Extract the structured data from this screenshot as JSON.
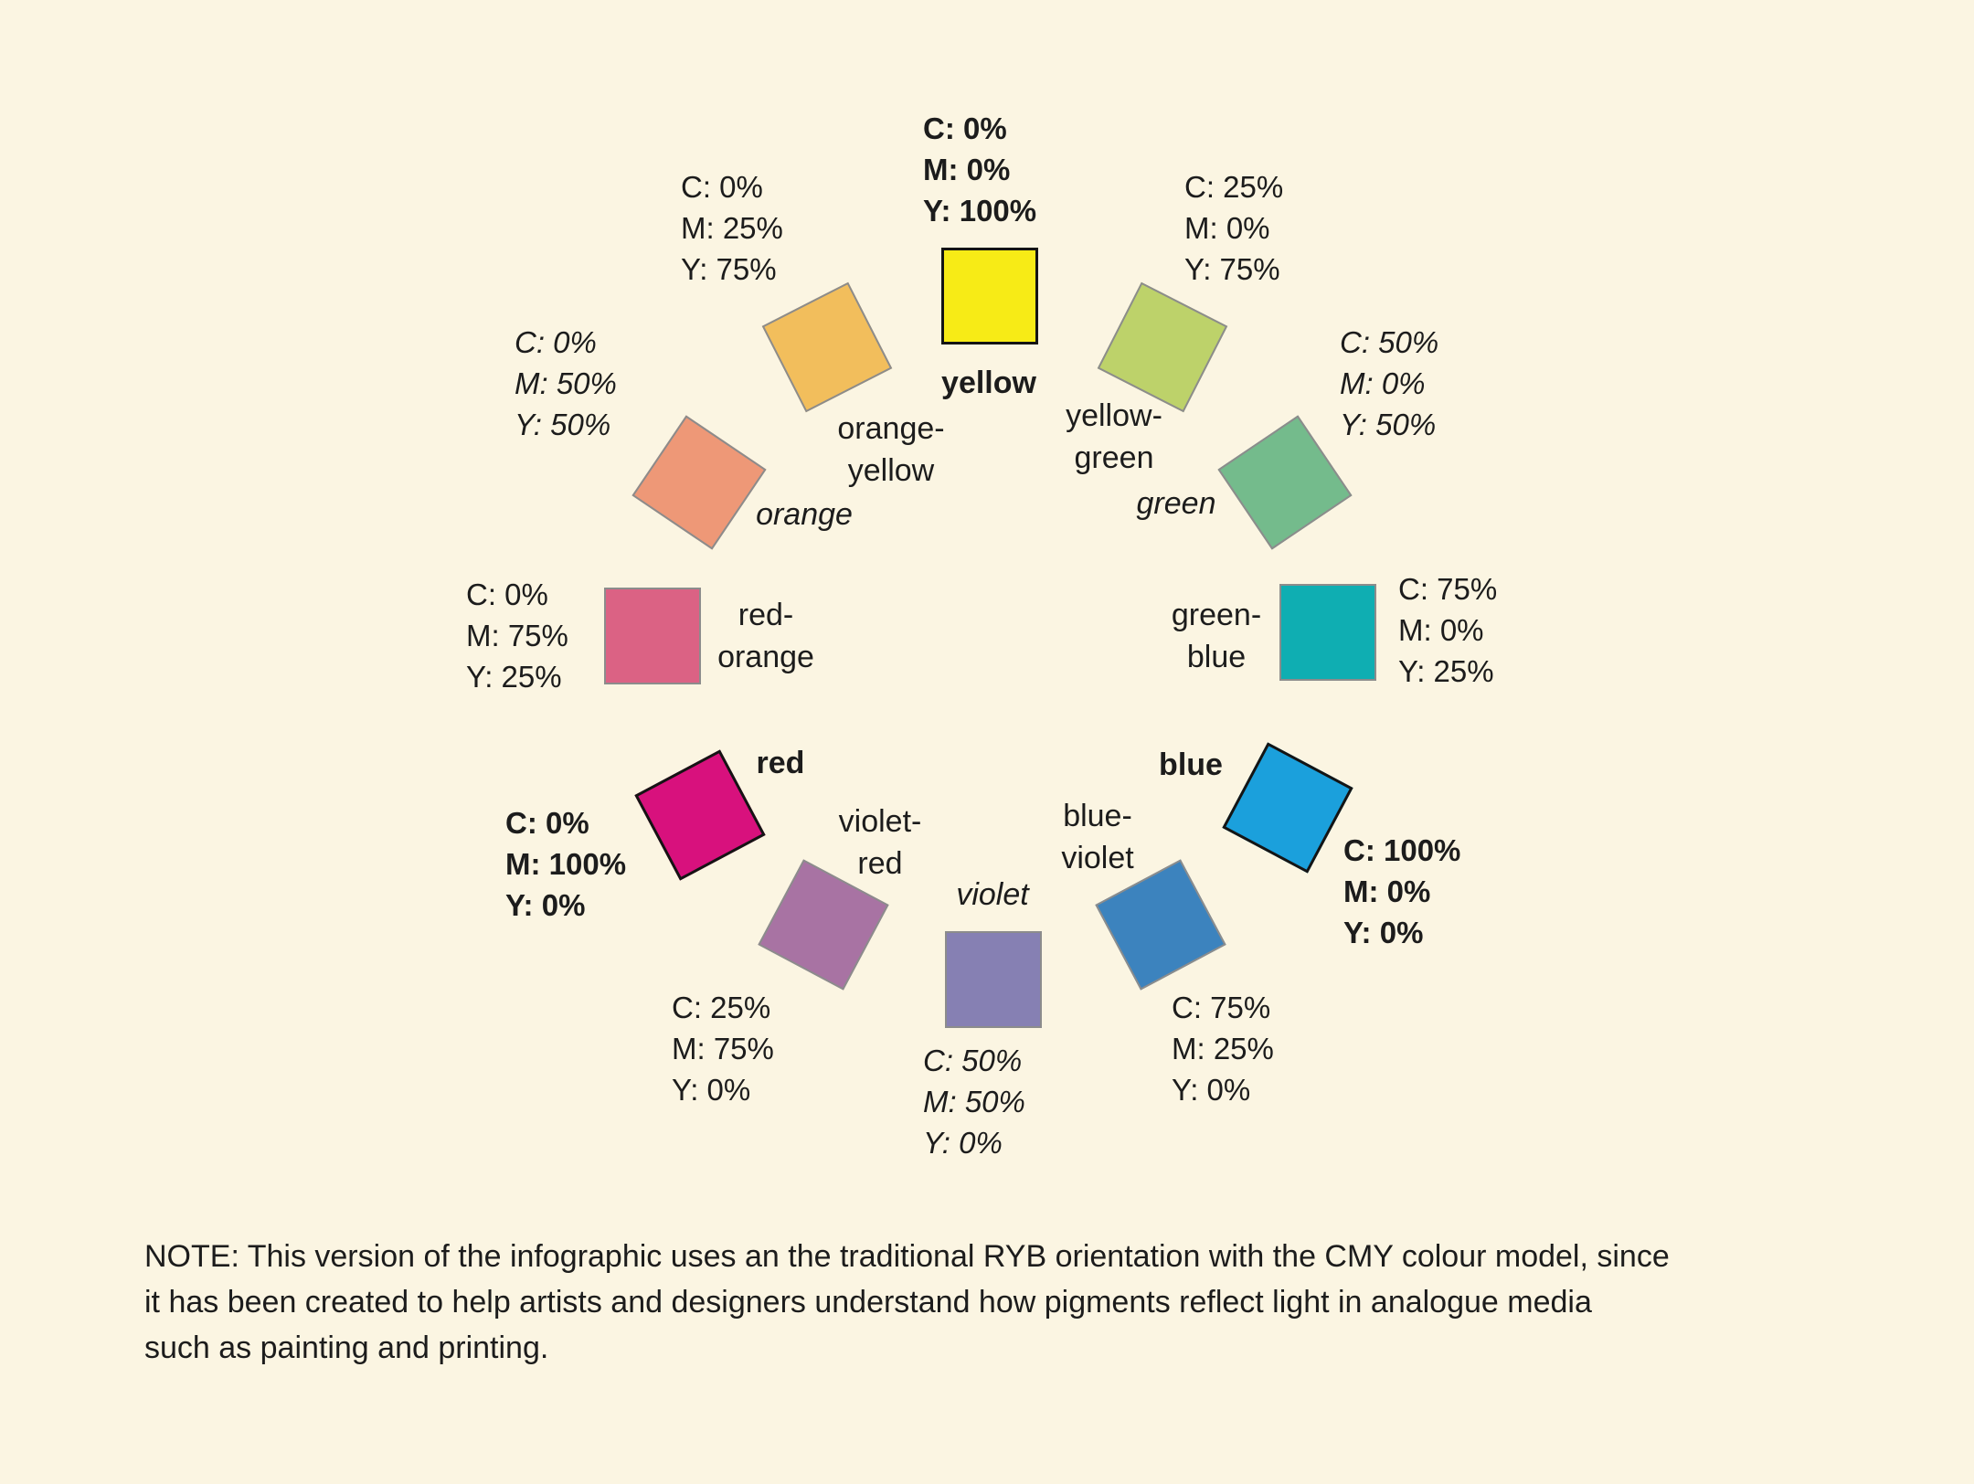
{
  "canvas": {
    "background_hex": "#FBF5E2",
    "text_hex": "#1C1C1C"
  },
  "wheel": {
    "model": "CMY",
    "orientation": "RYB",
    "items": [
      {
        "id": "yellow",
        "role": "primary",
        "name_lines": [
          "yellow"
        ],
        "cmy_lines": [
          "C: 0%",
          "M: 0%",
          "Y: 100%"
        ],
        "swatch_hex": "#F7EB16"
      },
      {
        "id": "orange-yellow",
        "role": "tertiary",
        "name_lines": [
          "orange-",
          "yellow"
        ],
        "cmy_lines": [
          "C: 0%",
          "M: 25%",
          "Y: 75%"
        ],
        "swatch_hex": "#F2BE5C"
      },
      {
        "id": "orange",
        "role": "secondary",
        "name_lines": [
          "orange"
        ],
        "cmy_lines": [
          "C: 0%",
          "M: 50%",
          "Y: 50%"
        ],
        "swatch_hex": "#EE9877"
      },
      {
        "id": "red-orange",
        "role": "tertiary",
        "name_lines": [
          "red-",
          "orange"
        ],
        "cmy_lines": [
          "C: 0%",
          "M: 75%",
          "Y: 25%"
        ],
        "swatch_hex": "#DB6284"
      },
      {
        "id": "red",
        "role": "primary",
        "name_lines": [
          "red"
        ],
        "cmy_lines": [
          "C: 0%",
          "M: 100%",
          "Y: 0%"
        ],
        "swatch_hex": "#D8117D"
      },
      {
        "id": "violet-red",
        "role": "tertiary",
        "name_lines": [
          "violet-",
          "red"
        ],
        "cmy_lines": [
          "C: 25%",
          "M: 75%",
          "Y: 0%"
        ],
        "swatch_hex": "#A873A3"
      },
      {
        "id": "violet",
        "role": "secondary",
        "name_lines": [
          "violet"
        ],
        "cmy_lines": [
          "C: 50%",
          "M: 50%",
          "Y: 0%"
        ],
        "swatch_hex": "#8680B3"
      },
      {
        "id": "blue-violet",
        "role": "tertiary",
        "name_lines": [
          "blue-",
          "violet"
        ],
        "cmy_lines": [
          "C: 75%",
          "M: 25%",
          "Y: 0%"
        ],
        "swatch_hex": "#3C83BE"
      },
      {
        "id": "blue",
        "role": "primary",
        "name_lines": [
          "blue"
        ],
        "cmy_lines": [
          "C: 100%",
          "M: 0%",
          "Y: 0%"
        ],
        "swatch_hex": "#1BA0DC"
      },
      {
        "id": "green-blue",
        "role": "tertiary",
        "name_lines": [
          "green-",
          "blue"
        ],
        "cmy_lines": [
          "C: 75%",
          "M: 0%",
          "Y: 25%"
        ],
        "swatch_hex": "#0FAEB2"
      },
      {
        "id": "green",
        "role": "secondary",
        "name_lines": [
          "green"
        ],
        "cmy_lines": [
          "C: 50%",
          "M: 0%",
          "Y: 50%"
        ],
        "swatch_hex": "#74BB8C"
      },
      {
        "id": "yellow-green",
        "role": "tertiary",
        "name_lines": [
          "yellow-",
          "green"
        ],
        "cmy_lines": [
          "C: 25%",
          "M: 0%",
          "Y: 75%"
        ],
        "swatch_hex": "#BDD26A"
      }
    ]
  },
  "note": {
    "lines": [
      "NOTE: This version of the infographic uses an the traditional RYB orientation with the CMY colour model, since",
      "it has been created to help artists and designers understand how pigments reflect light in analogue media",
      "such as painting and printing."
    ]
  }
}
